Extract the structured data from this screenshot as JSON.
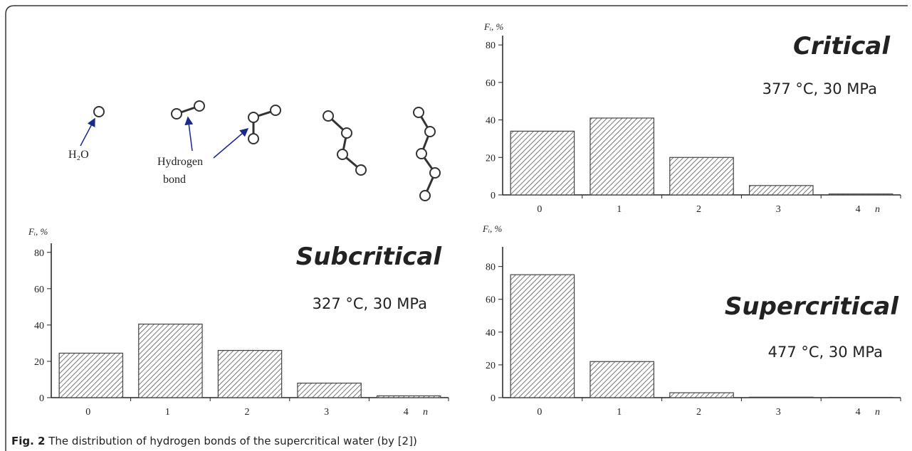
{
  "diagram": {
    "molecule_label": "H₂O",
    "bond_label": [
      "Hydrogen",
      "bond"
    ]
  },
  "caption": {
    "label": "Fig. 2",
    "text": " The distribution of hydrogen bonds of the supercritical water (by [2])"
  },
  "chart_data": [
    {
      "type": "bar",
      "title": "Critical",
      "subtitle": "377 °C, 30 MPa",
      "y_label": "Fᵢ, %",
      "x_label": "n",
      "categories": [
        "0",
        "1",
        "2",
        "3",
        "4"
      ],
      "values": [
        34,
        41,
        20,
        5,
        0.5
      ],
      "ylim": [
        0,
        85
      ],
      "yticks": [
        0,
        20,
        40,
        60,
        80
      ],
      "color": "#444444",
      "title_color": "#2a6db5"
    },
    {
      "type": "bar",
      "title": "Subcritical",
      "subtitle": "327 °C, 30 MPa",
      "y_label": "Fᵢ, %",
      "x_label": "n",
      "categories": [
        "0",
        "1",
        "2",
        "3",
        "4"
      ],
      "values": [
        24.5,
        40.5,
        26,
        8,
        1
      ],
      "ylim": [
        0,
        85
      ],
      "yticks": [
        0,
        20,
        40,
        60,
        80
      ],
      "color": "#444444",
      "title_color": "#2a6db5"
    },
    {
      "type": "bar",
      "title": "Supercritical",
      "subtitle": "477 °C, 30 MPa",
      "y_label": "Fᵢ, %",
      "x_label": "n",
      "categories": [
        "0",
        "1",
        "2",
        "3",
        "4"
      ],
      "values": [
        75,
        22,
        3,
        0.3,
        0.2
      ],
      "ylim": [
        0,
        92
      ],
      "yticks": [
        0,
        20,
        40,
        60,
        80
      ],
      "color": "#444444",
      "title_color": "#2a6db5"
    }
  ]
}
